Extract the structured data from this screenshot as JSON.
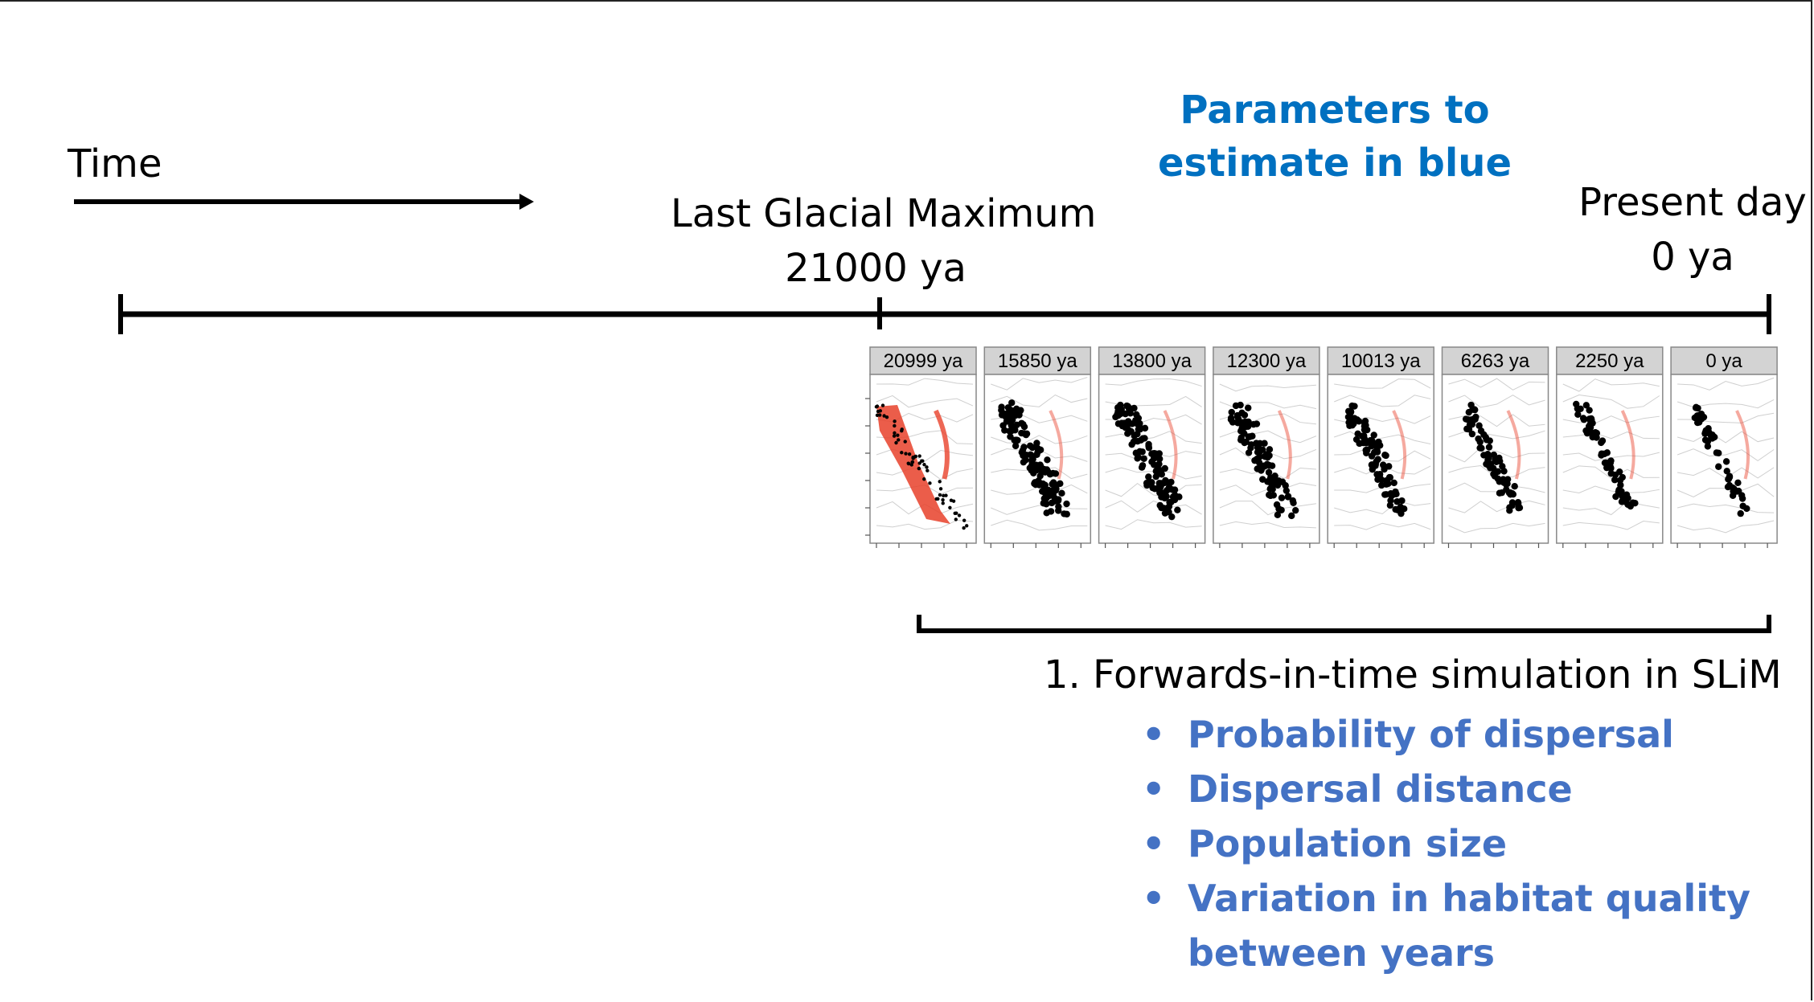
{
  "time_label": "Time",
  "lgm": {
    "title": "Last Glacial Maximum",
    "date": "21000 ya"
  },
  "present": {
    "title": "Present day",
    "date": "0 ya"
  },
  "params_note": {
    "line1": "Parameters to",
    "line2": "estimate in blue"
  },
  "panels": [
    "20999 ya",
    "15850 ya",
    "13800 ya",
    "12300 ya",
    "10013 ya",
    "6263 ya",
    "2250 ya",
    "0 ya"
  ],
  "simulation": {
    "title": "1. Forwards-in-time simulation in SLiM",
    "bullets": [
      "Probability of dispersal",
      "Dispersal distance",
      "Population size",
      "Variation in habitat quality between years"
    ]
  },
  "colors": {
    "param_blue": "#0070c0",
    "bullet_blue": "#4472c4",
    "panel_header": "#d3d3d3",
    "occupied": "#000000",
    "habitat": "#e8412a"
  }
}
